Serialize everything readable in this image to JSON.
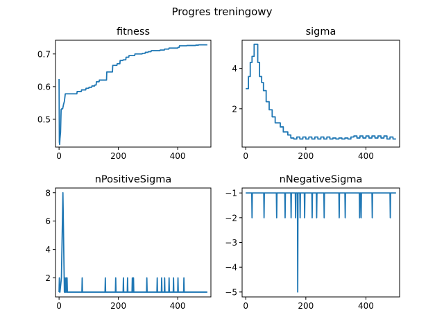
{
  "figure": {
    "suptitle": "Progres treningowy"
  },
  "chart_data": [
    {
      "type": "line",
      "title": "fitness",
      "xlim": [
        -12,
        512
      ],
      "ylim": [
        0.415,
        0.742
      ],
      "xticks": [
        0,
        200,
        400
      ],
      "xtick_labels": [
        "0",
        "200",
        "400"
      ],
      "yticks": [
        0.5,
        0.6,
        0.7
      ],
      "ytick_labels": [
        "0.5",
        "0.6",
        "0.7"
      ],
      "series": [
        {
          "color": "#1f77b4",
          "x": [
            0,
            1,
            2,
            3,
            5,
            7,
            9,
            12,
            15,
            18,
            21,
            25,
            60,
            61,
            75,
            76,
            90,
            91,
            100,
            101,
            110,
            111,
            120,
            121,
            125,
            126,
            135,
            136,
            160,
            161,
            180,
            181,
            195,
            196,
            205,
            206,
            215,
            216,
            225,
            226,
            235,
            236,
            255,
            256,
            280,
            281,
            290,
            291,
            300,
            301,
            310,
            311,
            340,
            341,
            355,
            356,
            370,
            371,
            385,
            386,
            400,
            401,
            405,
            406,
            430,
            431,
            460,
            461,
            470,
            471,
            500
          ],
          "y": [
            0.623,
            0.43,
            0.423,
            0.44,
            0.46,
            0.53,
            0.532,
            0.532,
            0.545,
            0.555,
            0.578,
            0.578,
            0.578,
            0.585,
            0.585,
            0.59,
            0.59,
            0.595,
            0.595,
            0.598,
            0.598,
            0.602,
            0.602,
            0.605,
            0.605,
            0.615,
            0.615,
            0.62,
            0.62,
            0.645,
            0.645,
            0.665,
            0.665,
            0.67,
            0.67,
            0.68,
            0.68,
            0.682,
            0.682,
            0.69,
            0.69,
            0.695,
            0.695,
            0.7,
            0.7,
            0.702,
            0.702,
            0.705,
            0.705,
            0.707,
            0.707,
            0.71,
            0.71,
            0.712,
            0.712,
            0.715,
            0.715,
            0.718,
            0.718,
            0.718,
            0.718,
            0.72,
            0.72,
            0.725,
            0.725,
            0.726,
            0.726,
            0.727,
            0.727,
            0.728,
            0.728
          ]
        }
      ]
    },
    {
      "type": "line",
      "title": "sigma",
      "xlim": [
        -12,
        512
      ],
      "ylim": [
        0.1,
        5.4
      ],
      "xticks": [
        0,
        200,
        400
      ],
      "xtick_labels": [
        "0",
        "200",
        "400"
      ],
      "yticks": [
        2,
        4
      ],
      "ytick_labels": [
        "2",
        "4"
      ],
      "series": [
        {
          "color": "#1f77b4",
          "x": [
            0,
            9,
            9,
            15,
            15,
            21,
            21,
            28,
            28,
            40,
            40,
            46,
            46,
            53,
            53,
            59,
            59,
            68,
            68,
            78,
            78,
            88,
            88,
            98,
            98,
            115,
            115,
            125,
            125,
            140,
            140,
            150,
            150,
            160,
            160,
            170,
            170,
            180,
            180,
            190,
            190,
            200,
            200,
            210,
            210,
            220,
            220,
            230,
            230,
            240,
            240,
            250,
            250,
            260,
            260,
            270,
            270,
            280,
            280,
            290,
            290,
            300,
            300,
            310,
            310,
            320,
            320,
            330,
            330,
            340,
            340,
            350,
            350,
            360,
            360,
            370,
            370,
            380,
            380,
            390,
            390,
            400,
            400,
            410,
            410,
            420,
            420,
            430,
            430,
            440,
            440,
            450,
            450,
            460,
            460,
            470,
            470,
            480,
            480,
            490,
            490,
            500
          ],
          "y": [
            3.0,
            3.0,
            3.6,
            3.6,
            4.3,
            4.3,
            4.6,
            4.6,
            5.2,
            5.2,
            4.3,
            4.3,
            3.6,
            3.6,
            3.3,
            3.3,
            2.9,
            2.9,
            2.35,
            2.35,
            1.95,
            1.95,
            1.6,
            1.6,
            1.3,
            1.3,
            1.1,
            1.1,
            0.85,
            0.85,
            0.7,
            0.7,
            0.55,
            0.55,
            0.5,
            0.5,
            0.6,
            0.6,
            0.5,
            0.5,
            0.6,
            0.6,
            0.5,
            0.5,
            0.6,
            0.6,
            0.5,
            0.5,
            0.6,
            0.6,
            0.5,
            0.5,
            0.6,
            0.6,
            0.5,
            0.5,
            0.6,
            0.6,
            0.5,
            0.5,
            0.55,
            0.55,
            0.5,
            0.5,
            0.55,
            0.55,
            0.5,
            0.5,
            0.55,
            0.55,
            0.5,
            0.5,
            0.6,
            0.6,
            0.65,
            0.65,
            0.55,
            0.55,
            0.65,
            0.65,
            0.55,
            0.55,
            0.65,
            0.65,
            0.55,
            0.55,
            0.65,
            0.65,
            0.55,
            0.55,
            0.65,
            0.65,
            0.55,
            0.55,
            0.65,
            0.65,
            0.5,
            0.5,
            0.6,
            0.6,
            0.5,
            0.5
          ]
        }
      ]
    },
    {
      "type": "line",
      "title": "nPositiveSigma",
      "xlim": [
        -12,
        512
      ],
      "ylim": [
        0.66,
        8.33
      ],
      "xticks": [
        0,
        200,
        400
      ],
      "xtick_labels": [
        "0",
        "200",
        "400"
      ],
      "yticks": [
        2,
        4,
        6,
        8
      ],
      "ytick_labels": [
        "2",
        "4",
        "6",
        "8"
      ],
      "series": [
        {
          "color": "#1f77b4",
          "x": [
            0,
            1,
            2,
            3,
            8,
            13,
            18,
            19,
            20,
            21,
            22,
            24,
            25,
            26,
            27,
            28,
            29,
            30,
            77,
            78,
            79,
            155,
            156,
            157,
            190,
            191,
            192,
            216,
            217,
            218,
            230,
            231,
            232,
            246,
            247,
            248,
            250,
            251,
            252,
            295,
            296,
            297,
            330,
            331,
            332,
            345,
            346,
            347,
            355,
            356,
            357,
            370,
            371,
            372,
            385,
            386,
            387,
            400,
            401,
            402,
            420,
            421,
            422,
            500
          ],
          "y": [
            1,
            2,
            1,
            1,
            2,
            8,
            1,
            1,
            2,
            1,
            1,
            2,
            1,
            1,
            2,
            1,
            1,
            1,
            1,
            2,
            1,
            1,
            2,
            1,
            1,
            2,
            1,
            1,
            2,
            1,
            1,
            2,
            1,
            1,
            2,
            1,
            1,
            2,
            1,
            1,
            2,
            1,
            1,
            2,
            1,
            1,
            2,
            1,
            1,
            2,
            1,
            1,
            2,
            1,
            1,
            2,
            1,
            1,
            2,
            1,
            1,
            2,
            1,
            1
          ]
        }
      ]
    },
    {
      "type": "line",
      "title": "nNegativeSigma",
      "xlim": [
        -12,
        512
      ],
      "ylim": [
        -5.2,
        -0.8
      ],
      "xticks": [
        0,
        200,
        400
      ],
      "xtick_labels": [
        "0",
        "200",
        "400"
      ],
      "yticks": [
        -1,
        -2,
        -3,
        -4,
        -5
      ],
      "ytick_labels": [
        "−1",
        "−2",
        "−3",
        "−4",
        "−5"
      ],
      "series": [
        {
          "color": "#1f77b4",
          "x": [
            0,
            20,
            21,
            22,
            60,
            61,
            62,
            102,
            103,
            104,
            130,
            131,
            132,
            150,
            151,
            152,
            165,
            166,
            167,
            172,
            173,
            174,
            180,
            181,
            182,
            195,
            196,
            197,
            220,
            221,
            222,
            235,
            236,
            237,
            260,
            261,
            262,
            310,
            311,
            312,
            330,
            331,
            332,
            378,
            379,
            380,
            383,
            384,
            385,
            420,
            421,
            422,
            480,
            481,
            482,
            500
          ],
          "y": [
            -1,
            -1,
            -2,
            -1,
            -1,
            -2,
            -1,
            -1,
            -2,
            -1,
            -1,
            -2,
            -1,
            -1,
            -2,
            -1,
            -1,
            -2,
            -1,
            -1,
            -5,
            -1,
            -1,
            -2,
            -1,
            -1,
            -2,
            -1,
            -1,
            -2,
            -1,
            -1,
            -2,
            -1,
            -1,
            -2,
            -1,
            -1,
            -2,
            -1,
            -1,
            -2,
            -1,
            -1,
            -2,
            -1,
            -1,
            -2,
            -1,
            -1,
            -2,
            -1,
            -1,
            -2,
            -1,
            -1
          ]
        }
      ]
    }
  ]
}
